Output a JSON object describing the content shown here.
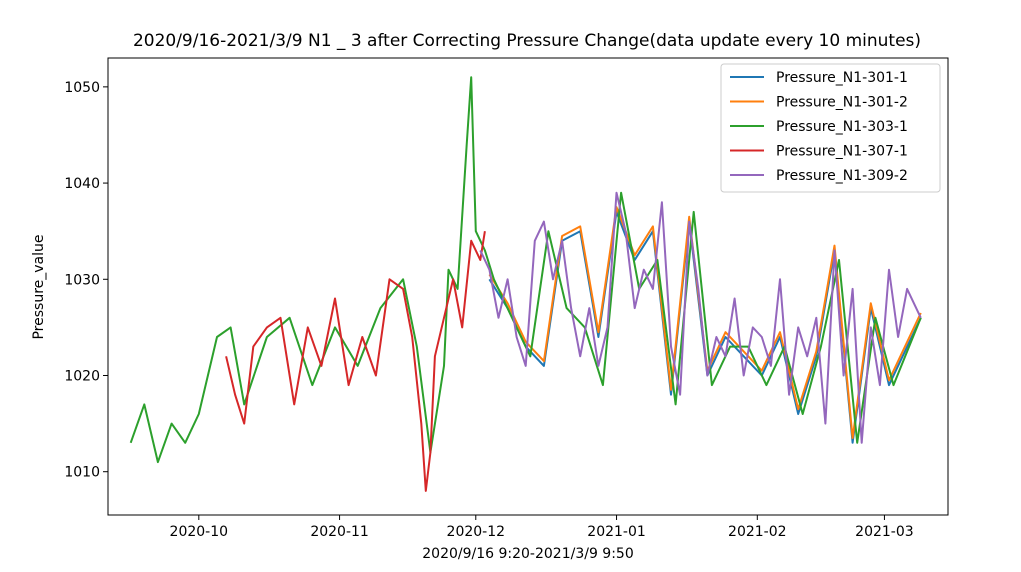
{
  "chart_data": {
    "type": "line",
    "title": "2020/9/16-2021/3/9 N1 _ 3 after Correcting Pressure Change(data update every 10 minutes)",
    "xlabel": "2020/9/16 9:20-2021/3/9 9:50",
    "ylabel": "Pressure_value",
    "xlim": [
      "2020-09-11",
      "2021-03-15"
    ],
    "ylim": [
      1005.5,
      1053
    ],
    "x_ticks": [
      "2020-10-01",
      "2020-11-01",
      "2020-12-01",
      "2021-01-01",
      "2021-02-01",
      "2021-03-01"
    ],
    "x_tick_labels": [
      "2020-10",
      "2020-11",
      "2020-12",
      "2021-01",
      "2021-02",
      "2021-03"
    ],
    "y_ticks": [
      1010,
      1020,
      1030,
      1040,
      1050
    ],
    "legend_position": "top-right",
    "grid": false,
    "series": [
      {
        "name": "Pressure_N1-301-1",
        "color": "#1f77b4",
        "x": [
          "2020-12-04",
          "2020-12-08",
          "2020-12-12",
          "2020-12-16",
          "2020-12-20",
          "2020-12-24",
          "2020-12-28",
          "2021-01-01",
          "2021-01-05",
          "2021-01-09",
          "2021-01-13",
          "2021-01-17",
          "2021-01-21",
          "2021-01-25",
          "2021-01-29",
          "2021-02-02",
          "2021-02-06",
          "2021-02-10",
          "2021-02-14",
          "2021-02-18",
          "2021-02-22",
          "2021-02-26",
          "2021-03-02",
          "2021-03-09"
        ],
        "y": [
          1030,
          1027,
          1023,
          1021,
          1034,
          1035,
          1024,
          1037,
          1032,
          1035,
          1018,
          1036,
          1020,
          1024,
          1022,
          1020,
          1024,
          1016,
          1022,
          1033,
          1013,
          1027,
          1019,
          1026
        ]
      },
      {
        "name": "Pressure_N1-301-2",
        "color": "#ff7f0e",
        "x": [
          "2020-12-04",
          "2020-12-08",
          "2020-12-12",
          "2020-12-16",
          "2020-12-20",
          "2020-12-24",
          "2020-12-28",
          "2021-01-01",
          "2021-01-05",
          "2021-01-09",
          "2021-01-13",
          "2021-01-17",
          "2021-01-21",
          "2021-01-25",
          "2021-01-29",
          "2021-02-02",
          "2021-02-06",
          "2021-02-10",
          "2021-02-14",
          "2021-02-18",
          "2021-02-22",
          "2021-02-26",
          "2021-03-02",
          "2021-03-09"
        ],
        "y": [
          1030.5,
          1027.5,
          1023.5,
          1021.5,
          1034.5,
          1035.5,
          1024.5,
          1037.5,
          1032.5,
          1035.5,
          1018.5,
          1036.5,
          1020.5,
          1024.5,
          1022.5,
          1020.5,
          1024.5,
          1016.5,
          1022.5,
          1033.5,
          1013.5,
          1027.5,
          1019.5,
          1026.5
        ]
      },
      {
        "name": "Pressure_N1-303-1",
        "color": "#2ca02c",
        "x": [
          "2020-09-16",
          "2020-09-19",
          "2020-09-22",
          "2020-09-25",
          "2020-09-28",
          "2020-10-01",
          "2020-10-03",
          "2020-10-05",
          "2020-10-08",
          "2020-10-11",
          "2020-10-16",
          "2020-10-21",
          "2020-10-26",
          "2020-10-31",
          "2020-11-05",
          "2020-11-10",
          "2020-11-15",
          "2020-11-18",
          "2020-11-21",
          "2020-11-24",
          "2020-11-25",
          "2020-11-27",
          "2020-11-29",
          "2020-11-30",
          "2020-12-01",
          "2020-12-03",
          "2020-12-05",
          "2020-12-09",
          "2020-12-13",
          "2020-12-17",
          "2020-12-21",
          "2020-12-25",
          "2020-12-29",
          "2021-01-02",
          "2021-01-06",
          "2021-01-10",
          "2021-01-14",
          "2021-01-18",
          "2021-01-22",
          "2021-01-26",
          "2021-01-30",
          "2021-02-03",
          "2021-02-07",
          "2021-02-11",
          "2021-02-15",
          "2021-02-19",
          "2021-02-23",
          "2021-02-27",
          "2021-03-03",
          "2021-03-09"
        ],
        "y": [
          1013,
          1017,
          1011,
          1015,
          1013,
          1016,
          1020,
          1024,
          1025,
          1017,
          1024,
          1026,
          1019,
          1025,
          1021,
          1027,
          1030,
          1023,
          1012,
          1021,
          1031,
          1029,
          1044,
          1051,
          1035,
          1033,
          1030,
          1026,
          1022,
          1035,
          1027,
          1025,
          1019,
          1039,
          1029,
          1032,
          1017,
          1037,
          1019,
          1023,
          1023,
          1019,
          1023,
          1016,
          1023,
          1032,
          1013,
          1026,
          1019,
          1026
        ]
      },
      {
        "name": "Pressure_N1-307-1",
        "color": "#d62728",
        "x": [
          "2020-10-07",
          "2020-10-09",
          "2020-10-11",
          "2020-10-13",
          "2020-10-16",
          "2020-10-19",
          "2020-10-22",
          "2020-10-25",
          "2020-10-28",
          "2020-10-31",
          "2020-11-03",
          "2020-11-06",
          "2020-11-09",
          "2020-11-12",
          "2020-11-15",
          "2020-11-17",
          "2020-11-19",
          "2020-11-20",
          "2020-11-21",
          "2020-11-22",
          "2020-11-24",
          "2020-11-26",
          "2020-11-28",
          "2020-11-30",
          "2020-12-02",
          "2020-12-03"
        ],
        "y": [
          1022,
          1018,
          1015,
          1023,
          1025,
          1026,
          1017,
          1025,
          1021,
          1028,
          1019,
          1024,
          1020,
          1030,
          1029,
          1024,
          1015,
          1008,
          1012,
          1022,
          1026,
          1030,
          1025,
          1034,
          1032,
          1035
        ]
      },
      {
        "name": "Pressure_N1-309-2",
        "color": "#9467bd",
        "x": [
          "2020-12-02",
          "2020-12-04",
          "2020-12-06",
          "2020-12-08",
          "2020-12-10",
          "2020-12-12",
          "2020-12-14",
          "2020-12-16",
          "2020-12-18",
          "2020-12-20",
          "2020-12-22",
          "2020-12-24",
          "2020-12-26",
          "2020-12-28",
          "2020-12-30",
          "2021-01-01",
          "2021-01-03",
          "2021-01-05",
          "2021-01-07",
          "2021-01-09",
          "2021-01-11",
          "2021-01-13",
          "2021-01-15",
          "2021-01-17",
          "2021-01-19",
          "2021-01-21",
          "2021-01-23",
          "2021-01-25",
          "2021-01-27",
          "2021-01-29",
          "2021-01-31",
          "2021-02-02",
          "2021-02-04",
          "2021-02-06",
          "2021-02-08",
          "2021-02-10",
          "2021-02-12",
          "2021-02-14",
          "2021-02-16",
          "2021-02-18",
          "2021-02-20",
          "2021-02-22",
          "2021-02-24",
          "2021-02-26",
          "2021-02-28",
          "2021-03-02",
          "2021-03-04",
          "2021-03-06",
          "2021-03-09"
        ],
        "y": [
          1033,
          1031,
          1026,
          1030,
          1024,
          1021,
          1034,
          1036,
          1030,
          1034,
          1027,
          1022,
          1027,
          1021,
          1025,
          1039,
          1035,
          1027,
          1031,
          1029,
          1038,
          1023,
          1018,
          1036,
          1029,
          1020,
          1024,
          1022,
          1028,
          1020,
          1025,
          1024,
          1021,
          1030,
          1018,
          1025,
          1022,
          1026,
          1015,
          1033,
          1020,
          1029,
          1013,
          1025,
          1019,
          1031,
          1024,
          1029,
          1026
        ]
      }
    ]
  }
}
